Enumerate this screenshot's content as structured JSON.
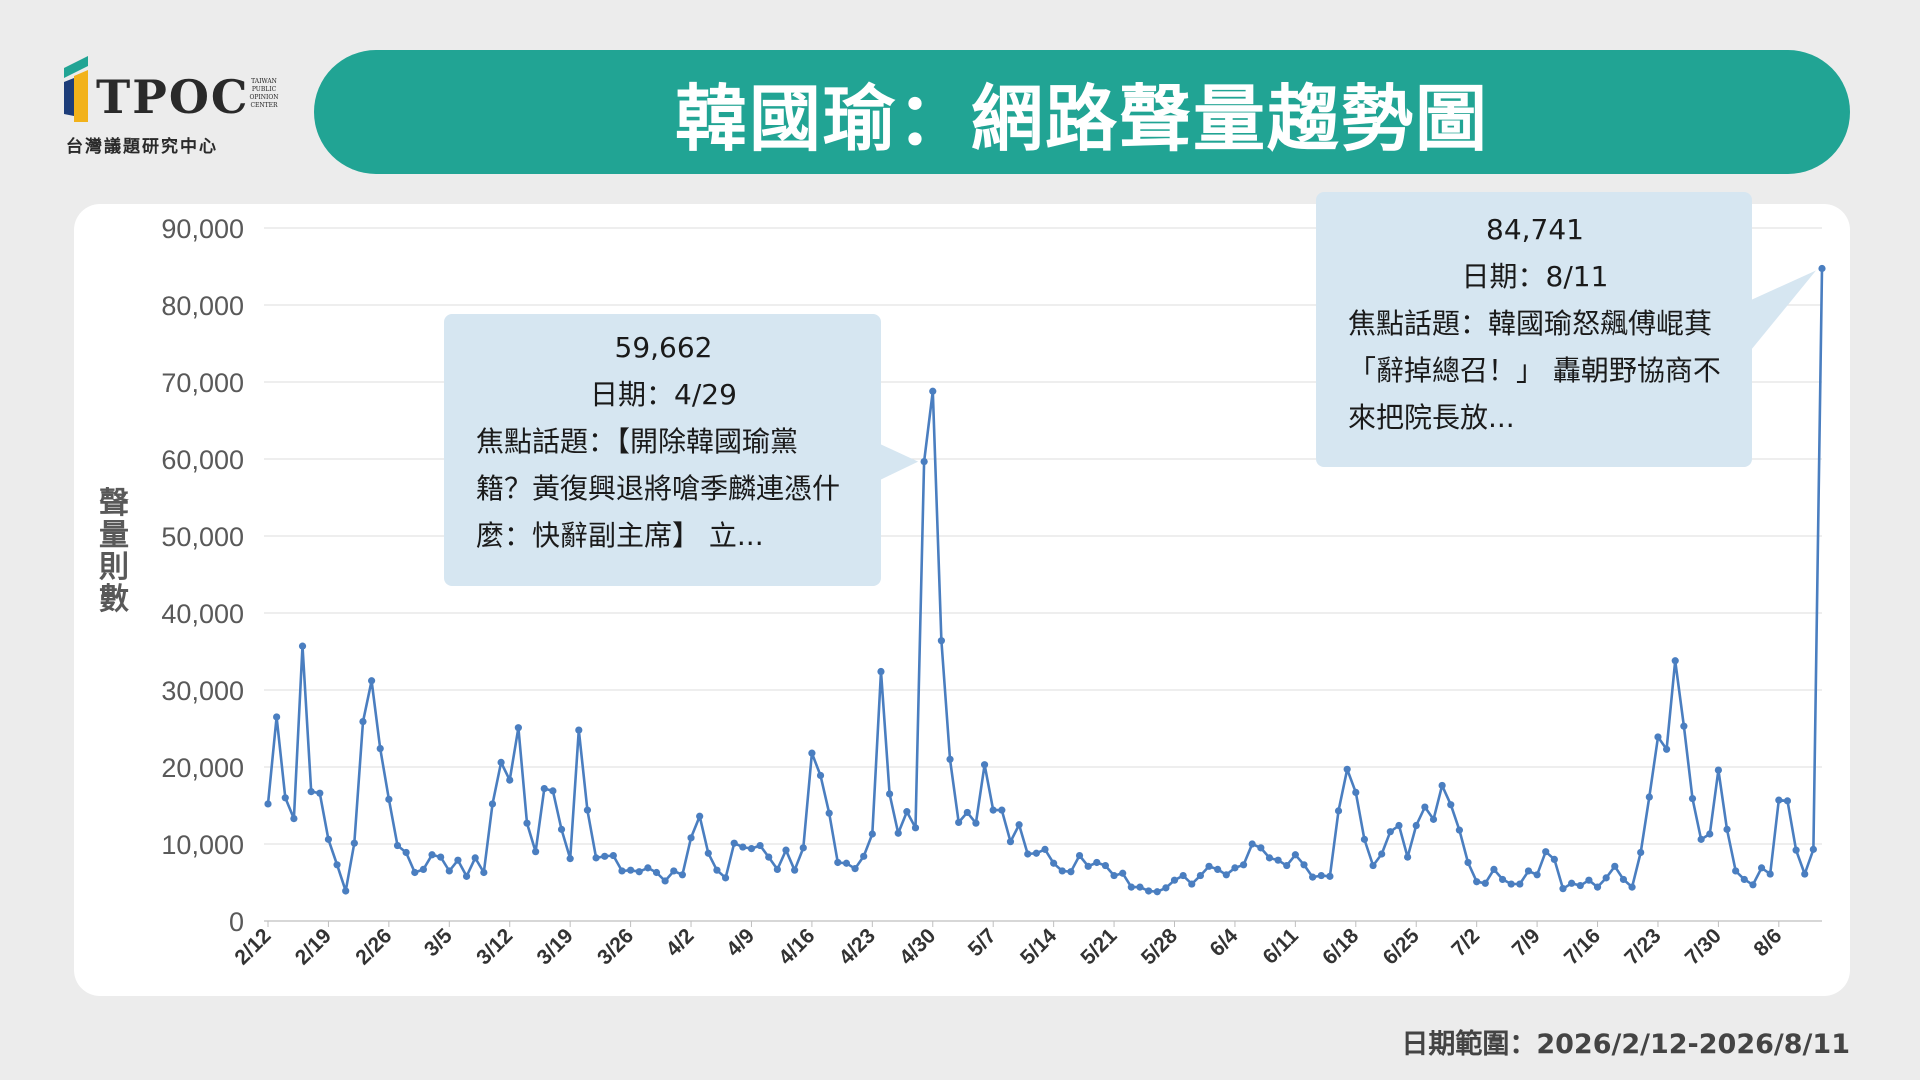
{
  "logo": {
    "text": "TPOC",
    "subtitle": "台灣議題研究中心",
    "badge": "TAIWAN PUBLIC OPINION CENTER"
  },
  "title": "韓國瑜：網路聲量趨勢圖",
  "footer": "日期範圍：2026/2/12-2026/8/11",
  "colors": {
    "accent": "#21a494",
    "line": "#4a7ec0",
    "callout": "#d6e6f1"
  },
  "chart_data": {
    "type": "line",
    "title": "",
    "xlabel": "",
    "ylabel": "聲量則數",
    "ylim": [
      0,
      90000
    ],
    "grid": true,
    "y_ticks": [
      "0",
      "10,000",
      "20,000",
      "30,000",
      "40,000",
      "50,000",
      "60,000",
      "70,000",
      "80,000",
      "90,000"
    ],
    "x_ticks": [
      "2/12",
      "2/19",
      "2/26",
      "3/5",
      "3/12",
      "3/19",
      "3/26",
      "4/2",
      "4/9",
      "4/16",
      "4/23",
      "4/30",
      "5/7",
      "5/14",
      "5/21",
      "5/28",
      "6/4",
      "6/11",
      "6/18",
      "6/25",
      "7/2",
      "7/9",
      "7/16",
      "7/23",
      "7/30",
      "8/6"
    ],
    "x_start": "2/12",
    "x_end": "8/11",
    "values": [
      15200,
      26500,
      16000,
      13300,
      35700,
      16800,
      16600,
      10600,
      7300,
      3900,
      10100,
      25900,
      31200,
      22400,
      15800,
      9800,
      8900,
      6300,
      6700,
      8600,
      8300,
      6500,
      7900,
      5800,
      8200,
      6300,
      15200,
      20600,
      18300,
      25100,
      12700,
      9000,
      17200,
      16900,
      11900,
      8100,
      24800,
      14400,
      8200,
      8400,
      8500,
      6500,
      6600,
      6400,
      6900,
      6300,
      5200,
      6500,
      6000,
      10800,
      13600,
      8800,
      6600,
      5600,
      10100,
      9600,
      9400,
      9800,
      8300,
      6700,
      9200,
      6600,
      9500,
      21800,
      18900,
      14000,
      7600,
      7500,
      6800,
      8400,
      11300,
      32400,
      16500,
      11400,
      14200,
      12100,
      59662,
      68800,
      36400,
      21000,
      12800,
      14100,
      12700,
      20300,
      14400,
      14400,
      10300,
      12500,
      8700,
      8800,
      9300,
      7500,
      6500,
      6400,
      8500,
      7100,
      7600,
      7200,
      5900,
      6200,
      4400,
      4400,
      3900,
      3800,
      4300,
      5300,
      5900,
      4800,
      5900,
      7100,
      6700,
      6000,
      6900,
      7300,
      10000,
      9500,
      8200,
      7900,
      7200,
      8600,
      7300,
      5700,
      5900,
      5800,
      14300,
      19700,
      16700,
      10600,
      7200,
      8700,
      11600,
      12400,
      8300,
      12400,
      14800,
      13200,
      17600,
      15100,
      11800,
      7600,
      5100,
      4900,
      6700,
      5400,
      4800,
      4800,
      6500,
      6000,
      9000,
      8000,
      4200,
      4900,
      4600,
      5300,
      4400,
      5600,
      7100,
      5400,
      4400,
      8900,
      16100,
      23900,
      22300,
      33800,
      25300,
      15900,
      10600,
      11300,
      19600,
      11900,
      6500,
      5400,
      4700,
      6900,
      6100,
      15700,
      15600,
      9200,
      6100,
      9300,
      84741
    ],
    "annotations": [
      {
        "value": "59,662",
        "date": "日期：4/29",
        "topic": "焦點話題：【開除韓國瑜黨籍？黃復興退將嗆季麟連憑什麼：快辭副主席】 立..."
      },
      {
        "value": "84,741",
        "date": "日期：8/11",
        "topic": "焦點話題：韓國瑜怒飆傅崐萁「辭掉總召！」 轟朝野協商不來把院長放..."
      }
    ]
  }
}
